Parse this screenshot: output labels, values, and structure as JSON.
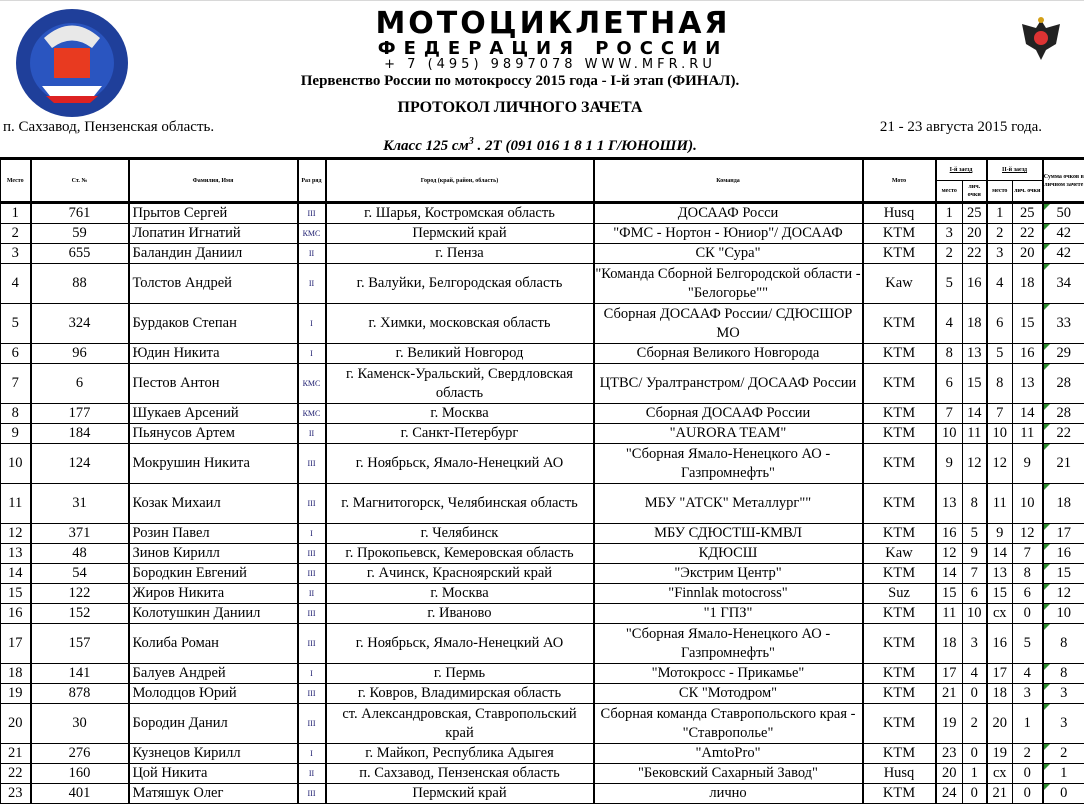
{
  "header": {
    "logo_text": "МОТОЦИКЛЕТНАЯ ФЕДЕРАЦИЯ РОССИИ · МФР · MOTORCYCLE FEDERATION OF RUSSIA",
    "banner_line1": "МОТОЦИКЛЕТНАЯ",
    "banner_line2": "ФЕДЕРАЦИЯ РОССИИ",
    "banner_contacts": "+ 7 (495) 9897078   WWW.MFR.RU",
    "event_title": "Первенство России по мотокроссу 2015 года - I-й этап (ФИНАЛ).",
    "protocol_title": "ПРОТОКОЛ  ЛИЧНОГО  ЗАЧЕТА",
    "location": "п. Сахзавод, Пензенская область.",
    "dates": "21 - 23 августа 2015 года.",
    "class_prefix": "Класс 125 см",
    "class_sup": "3",
    "class_suffix": " . 2Т (091 016 1 8 1 1 Г/ЮНОШИ)."
  },
  "colors": {
    "comment_marker": "#2e8b2e"
  },
  "columns": {
    "place": "Место",
    "number": "Ст. №",
    "name": "Фамилия, Имя",
    "rank": "Раз ряд",
    "city": "Город (край, район, область)",
    "team": "Команда",
    "moto": "Мото",
    "race1": "I-й заезд",
    "race2": "II-й заезд",
    "race_place": "место",
    "race_points": "лич. очки",
    "total": "Сумма очков в личном зачете"
  },
  "rows": [
    {
      "place": "1",
      "number": "761",
      "name": "Прытов Сергей",
      "rank": "III",
      "city": "г. Шарья, Костромская область",
      "team": "ДОСААФ Росси",
      "moto": "Husq",
      "r1p": "1",
      "r1s": "25",
      "r2p": "1",
      "r2s": "25",
      "total": "50",
      "tall": false
    },
    {
      "place": "2",
      "number": "59",
      "name": "Лопатин Игнатий",
      "rank": "КМС",
      "city": "Пермский край",
      "team": "\"ФМС - Нортон - Юниор\"/ ДОСААФ",
      "moto": "KTM",
      "r1p": "3",
      "r1s": "20",
      "r2p": "2",
      "r2s": "22",
      "total": "42",
      "tall": false
    },
    {
      "place": "3",
      "number": "655",
      "name": "Баландин Даниил",
      "rank": "II",
      "city": "г. Пенза",
      "team": "СК \"Сура\"",
      "moto": "KTM",
      "r1p": "2",
      "r1s": "22",
      "r2p": "3",
      "r2s": "20",
      "total": "42",
      "tall": false
    },
    {
      "place": "4",
      "number": "88",
      "name": "Толстов Андрей",
      "rank": "II",
      "city": "г. Валуйки, Белгородская область",
      "team": "\"Команда Сборной Белгородской области - \"Белогорье\"\"",
      "moto": "Kaw",
      "r1p": "5",
      "r1s": "16",
      "r2p": "4",
      "r2s": "18",
      "total": "34",
      "tall": true
    },
    {
      "place": "5",
      "number": "324",
      "name": "Бурдаков Степан",
      "rank": "I",
      "city": "г. Химки, московская область",
      "team": "Сборная ДОСААФ России/ СДЮСШОР МО",
      "moto": "KTM",
      "r1p": "4",
      "r1s": "18",
      "r2p": "6",
      "r2s": "15",
      "total": "33",
      "tall": true
    },
    {
      "place": "6",
      "number": "96",
      "name": "Юдин Никита",
      "rank": "I",
      "city": "г. Великий Новгород",
      "team": "Сборная Великого Новгорода",
      "moto": "KTM",
      "r1p": "8",
      "r1s": "13",
      "r2p": "5",
      "r2s": "16",
      "total": "29",
      "tall": false
    },
    {
      "place": "7",
      "number": "6",
      "name": "Пестов Антон",
      "rank": "КМС",
      "city": "г. Каменск-Уральский, Свердловская область",
      "team": "ЦТВС/ Уралтранстром/ ДОСААФ России",
      "moto": "KTM",
      "r1p": "6",
      "r1s": "15",
      "r2p": "8",
      "r2s": "13",
      "total": "28",
      "tall": true
    },
    {
      "place": "8",
      "number": "177",
      "name": "Шукаев Арсений",
      "rank": "КМС",
      "city": "г. Москва",
      "team": "Сборная ДОСААФ России",
      "moto": "KTM",
      "r1p": "7",
      "r1s": "14",
      "r2p": "7",
      "r2s": "14",
      "total": "28",
      "tall": false
    },
    {
      "place": "9",
      "number": "184",
      "name": "Пьянусов Артем",
      "rank": "II",
      "city": "г. Санкт-Петербург",
      "team": "\"AURORA TEAM\"",
      "moto": "KTM",
      "r1p": "10",
      "r1s": "11",
      "r2p": "10",
      "r2s": "11",
      "total": "22",
      "tall": false
    },
    {
      "place": "10",
      "number": "124",
      "name": "Мокрушин Никита",
      "rank": "III",
      "city": "г. Ноябрьск, Ямало-Ненецкий АО",
      "team": "\"Сборная Ямало-Ненецкого АО - Газпромнефть\"",
      "moto": "KTM",
      "r1p": "9",
      "r1s": "12",
      "r2p": "12",
      "r2s": "9",
      "total": "21",
      "tall": true
    },
    {
      "place": "11",
      "number": "31",
      "name": "Козак Михаил",
      "rank": "III",
      "city": "г. Магнитогорск, Челябинская область",
      "team": "МБУ \"АТСК\" Металлург\"\"",
      "moto": "KTM",
      "r1p": "13",
      "r1s": "8",
      "r2p": "11",
      "r2s": "10",
      "total": "18",
      "tall": true
    },
    {
      "place": "12",
      "number": "371",
      "name": "Розин Павел",
      "rank": "I",
      "city": "г. Челябинск",
      "team": "МБУ СДЮСТШ-КМВЛ",
      "moto": "KTM",
      "r1p": "16",
      "r1s": "5",
      "r2p": "9",
      "r2s": "12",
      "total": "17",
      "tall": false
    },
    {
      "place": "13",
      "number": "48",
      "name": "Зинов Кирилл",
      "rank": "III",
      "city": "г. Прокопьевск, Кемеровская область",
      "team": "КДЮСШ",
      "moto": "Kaw",
      "r1p": "12",
      "r1s": "9",
      "r2p": "14",
      "r2s": "7",
      "total": "16",
      "tall": false
    },
    {
      "place": "14",
      "number": "54",
      "name": "Бородкин Евгений",
      "rank": "III",
      "city": "г. Ачинск, Красноярский край",
      "team": "\"Экстрим Центр\"",
      "moto": "KTM",
      "r1p": "14",
      "r1s": "7",
      "r2p": "13",
      "r2s": "8",
      "total": "15",
      "tall": false
    },
    {
      "place": "15",
      "number": "122",
      "name": "Жиров Никита",
      "rank": "II",
      "city": "г. Москва",
      "team": "\"Finnlak motocross\"",
      "moto": "Suz",
      "r1p": "15",
      "r1s": "6",
      "r2p": "15",
      "r2s": "6",
      "total": "12",
      "tall": false
    },
    {
      "place": "16",
      "number": "152",
      "name": "Колотушкин Даниил",
      "rank": "III",
      "city": "г. Иваново",
      "team": "\"1 ГПЗ\"",
      "moto": "KTM",
      "r1p": "11",
      "r1s": "10",
      "r2p": "сх",
      "r2s": "0",
      "total": "10",
      "tall": false
    },
    {
      "place": "17",
      "number": "157",
      "name": "Колиба Роман",
      "rank": "III",
      "city": "г. Ноябрьск, Ямало-Ненецкий АО",
      "team": "\"Сборная Ямало-Ненецкого АО - Газпромнефть\"",
      "moto": "KTM",
      "r1p": "18",
      "r1s": "3",
      "r2p": "16",
      "r2s": "5",
      "total": "8",
      "tall": true
    },
    {
      "place": "18",
      "number": "141",
      "name": "Балуев Андрей",
      "rank": "I",
      "city": "г. Пермь",
      "team": "\"Мотокросс - Прикамье\"",
      "moto": "KTM",
      "r1p": "17",
      "r1s": "4",
      "r2p": "17",
      "r2s": "4",
      "total": "8",
      "tall": false
    },
    {
      "place": "19",
      "number": "878",
      "name": "Молодцов Юрий",
      "rank": "III",
      "city": "г. Ковров, Владимирская область",
      "team": "СК \"Мотодром\"",
      "moto": "KTM",
      "r1p": "21",
      "r1s": "0",
      "r2p": "18",
      "r2s": "3",
      "total": "3",
      "tall": false
    },
    {
      "place": "20",
      "number": "30",
      "name": "Бородин Данил",
      "rank": "III",
      "city": "ст. Александровская, Ставропольский край",
      "team": "Сборная команда Ставропольского края - \"Ставрополье\"",
      "moto": "KTM",
      "r1p": "19",
      "r1s": "2",
      "r2p": "20",
      "r2s": "1",
      "total": "3",
      "tall": true
    },
    {
      "place": "21",
      "number": "276",
      "name": "Кузнецов Кирилл",
      "rank": "I",
      "city": "г. Майкоп, Республика Адыгея",
      "team": "\"AmtoPro\"",
      "moto": "KTM",
      "r1p": "23",
      "r1s": "0",
      "r2p": "19",
      "r2s": "2",
      "total": "2",
      "tall": false
    },
    {
      "place": "22",
      "number": "160",
      "name": "Цой Никита",
      "rank": "II",
      "city": "п. Сахзавод, Пензенская область",
      "team": "\"Бековский Сахарный Завод\"",
      "moto": "Husq",
      "r1p": "20",
      "r1s": "1",
      "r2p": "сх",
      "r2s": "0",
      "total": "1",
      "tall": false
    },
    {
      "place": "23",
      "number": "401",
      "name": "Матяшук Олег",
      "rank": "III",
      "city": "Пермский край",
      "team": "лично",
      "moto": "KTM",
      "r1p": "24",
      "r1s": "0",
      "r2p": "21",
      "r2s": "0",
      "total": "0",
      "tall": false
    }
  ]
}
